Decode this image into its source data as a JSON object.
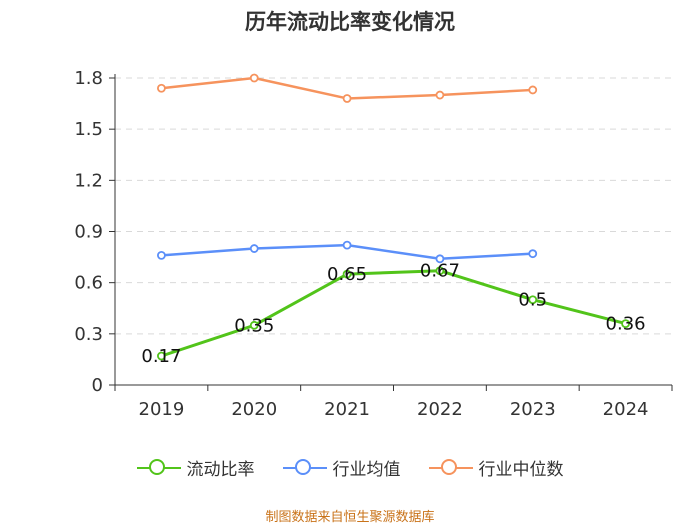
{
  "chart_data": {
    "type": "line",
    "title": "历年流动比率变化情况",
    "categories": [
      "2019",
      "2020",
      "2021",
      "2022",
      "2023",
      "2024"
    ],
    "ylim": [
      0,
      1.8
    ],
    "yticks": [
      0,
      0.3,
      0.6,
      0.9,
      1.2,
      1.5,
      1.8
    ],
    "ytick_labels": [
      "0",
      "0.3",
      "0.6",
      "0.9",
      "1.2",
      "1.5",
      "1.8"
    ],
    "grid": true,
    "legend_position": "bottom",
    "series": [
      {
        "name": "流动比率",
        "color": "#52c41a",
        "values": [
          0.17,
          0.35,
          0.65,
          0.67,
          0.5,
          0.36
        ],
        "labels": [
          "0.17",
          "0.35",
          "0.65",
          "0.67",
          "0.5",
          "0.36"
        ],
        "show_labels": true
      },
      {
        "name": "行业均值",
        "color": "#5b8ff9",
        "values": [
          0.76,
          0.8,
          0.82,
          0.74,
          0.77,
          null
        ],
        "show_labels": false
      },
      {
        "name": "行业中位数",
        "color": "#f6935d",
        "values": [
          1.74,
          1.8,
          1.68,
          1.7,
          1.73,
          null
        ],
        "show_labels": false
      }
    ]
  },
  "footer": {
    "source": "制图数据来自恒生聚源数据库"
  }
}
